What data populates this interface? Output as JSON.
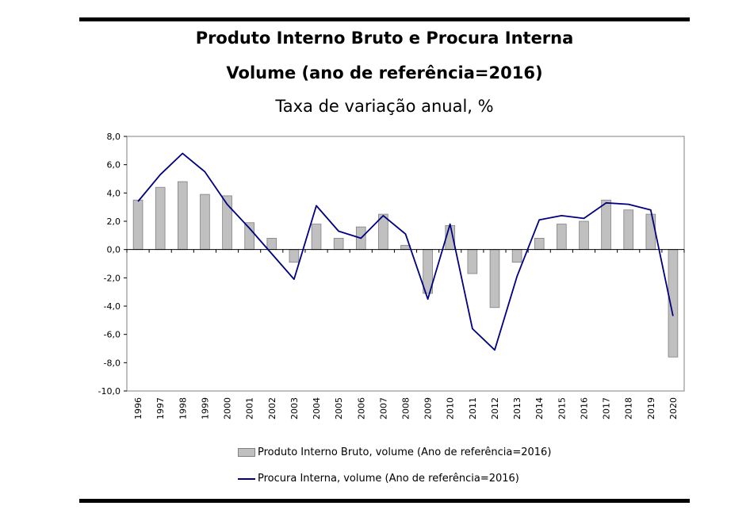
{
  "header": {
    "title_line1": "Produto Interno Bruto e Procura Interna",
    "title_line2": "Volume (ano de referência=2016)",
    "subtitle": "Taxa de variação anual, %"
  },
  "legend": {
    "bar_label": "Produto Interno Bruto, volume (Ano de referência=2016)",
    "line_label": "Procura Interna, volume (Ano de referência=2016)"
  },
  "colors": {
    "bar_fill": "#c0c0c0",
    "bar_stroke": "#808080",
    "line": "#000080"
  },
  "chart_data": {
    "type": "bar",
    "categories": [
      "1996",
      "1997",
      "1998",
      "1999",
      "2000",
      "2001",
      "2002",
      "2003",
      "2004",
      "2005",
      "2006",
      "2007",
      "2008",
      "2009",
      "2010",
      "2011",
      "2012",
      "2013",
      "2014",
      "2015",
      "2016",
      "2017",
      "2018",
      "2019",
      "2020"
    ],
    "series": [
      {
        "name": "Produto Interno Bruto, volume (Ano de referência=2016)",
        "kind": "bar",
        "values": [
          3.5,
          4.4,
          4.8,
          3.9,
          3.8,
          1.9,
          0.8,
          -0.9,
          1.8,
          0.8,
          1.6,
          2.5,
          0.3,
          -3.1,
          1.7,
          -1.7,
          -4.1,
          -0.9,
          0.8,
          1.8,
          2.0,
          3.5,
          2.8,
          2.5,
          -7.6
        ]
      },
      {
        "name": "Procura Interna, volume (Ano de referência=2016)",
        "kind": "line",
        "values": [
          3.4,
          5.3,
          6.8,
          5.5,
          3.2,
          1.5,
          -0.3,
          -2.1,
          3.1,
          1.3,
          0.8,
          2.4,
          1.1,
          -3.5,
          1.8,
          -5.6,
          -7.1,
          -1.9,
          2.1,
          2.4,
          2.2,
          3.3,
          3.2,
          2.8,
          -4.7
        ]
      }
    ],
    "ylim": [
      -10,
      8
    ],
    "yticks": [
      "8,0",
      "6,0",
      "4,0",
      "2,0",
      "0,0",
      "-2,0",
      "-4,0",
      "-6,0",
      "-8,0",
      "-10,0"
    ],
    "grid": false,
    "legend_position": "bottom"
  }
}
